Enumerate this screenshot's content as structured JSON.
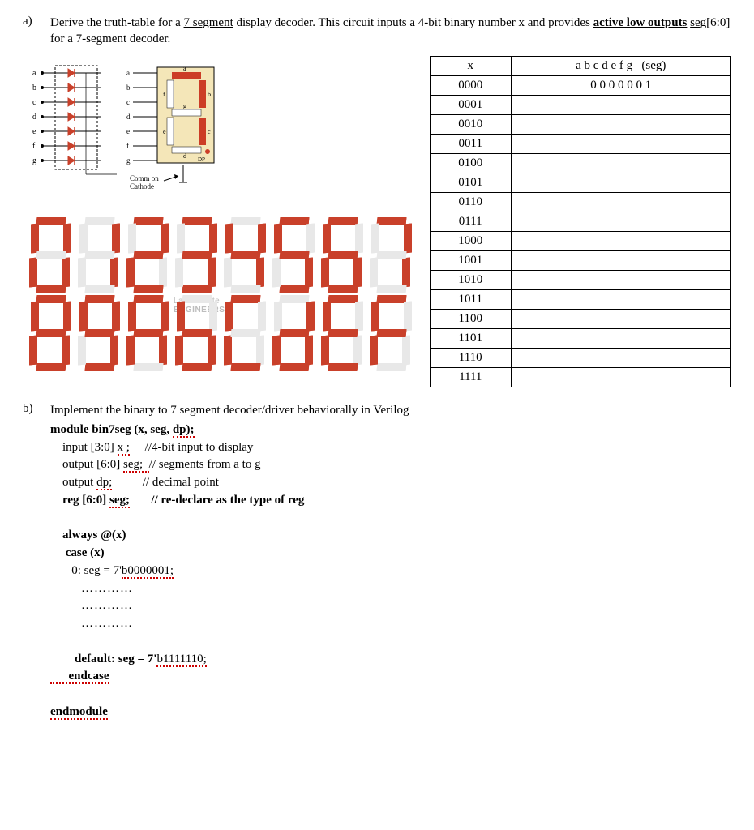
{
  "partA": {
    "label": "a)",
    "text_pre": "Derive the truth-table for a ",
    "underlined1": "7 segment",
    "text_mid": " display decoder. This circuit inputs a 4-bit binary number x and provides ",
    "bold_u": "active low outputs",
    "seg_u": "seg",
    "text_post": "[6:0] for a 7-segment decoder."
  },
  "schematic": {
    "pin_labels": [
      "a",
      "b",
      "c",
      "d",
      "e",
      "f",
      "g"
    ],
    "seg_labels": {
      "top": "a",
      "tr": "b",
      "br": "c",
      "bot": "d",
      "bl": "e",
      "tl": "f",
      "mid": "g",
      "dp": "DP"
    },
    "cathode_line1": "Comm on",
    "cathode_line2": "Cathode",
    "colors": {
      "ic_body": "#f4e6b8",
      "seg_on": "#cc3d26",
      "seg_off": "#fff",
      "pin_dot": "#000",
      "diode": "#c9402a",
      "wire": "#000"
    }
  },
  "hex_digits": {
    "rows": [
      [
        "0",
        "1",
        "2",
        "3",
        "4",
        "5",
        "6",
        "7"
      ],
      [
        "8",
        "9",
        "A",
        "b",
        "C",
        "d",
        "E",
        "F"
      ]
    ],
    "patterns": {
      "0": "1111110",
      "1": "0110000",
      "2": "1101101",
      "3": "1111001",
      "4": "0110011",
      "5": "1011011",
      "6": "1011111",
      "7": "1110000",
      "8": "1111111",
      "9": "1111011",
      "A": "1110111",
      "b": "0011111",
      "C": "1001110",
      "d": "0111101",
      "E": "1001111",
      "F": "1000111"
    },
    "seg_order": [
      "a",
      "b",
      "c",
      "d",
      "e",
      "f",
      "g"
    ],
    "on_color": "#c9402a",
    "off_color": "#e8e8e8",
    "watermark_line1": "Last Minute",
    "watermark_line2": "ENGINEERS"
  },
  "truth_table": {
    "headers": [
      "x",
      "a b c d e f g   (seg)"
    ],
    "rows": [
      {
        "x": "0000",
        "seg": "0 0 0 0 0 0 1"
      },
      {
        "x": "0001",
        "seg": ""
      },
      {
        "x": "0010",
        "seg": ""
      },
      {
        "x": "0011",
        "seg": ""
      },
      {
        "x": "0100",
        "seg": ""
      },
      {
        "x": "0101",
        "seg": ""
      },
      {
        "x": "0110",
        "seg": ""
      },
      {
        "x": "0111",
        "seg": ""
      },
      {
        "x": "1000",
        "seg": ""
      },
      {
        "x": "1001",
        "seg": ""
      },
      {
        "x": "1010",
        "seg": ""
      },
      {
        "x": "1011",
        "seg": ""
      },
      {
        "x": "1100",
        "seg": ""
      },
      {
        "x": "1101",
        "seg": ""
      },
      {
        "x": "1110",
        "seg": ""
      },
      {
        "x": "1111",
        "seg": ""
      }
    ]
  },
  "partB": {
    "label": "b)",
    "text": "Implement the binary to 7 segment decoder/driver behaviorally in Verilog"
  },
  "verilog": {
    "l1_pre": "module bin7seg (x, seg, ",
    "l1_dp": "dp);",
    "l2_pre": "    input [3:0] ",
    "l2_x": "x ;",
    "l2_cmt": "     //4-bit input to display",
    "l3_pre": "    output [6:0] ",
    "l3_seg": "seg;  ",
    "l3_cmt": "// segments from a to g",
    "l4_pre": "    output ",
    "l4_dp": "dp;",
    "l4_cmt": "          // decimal point",
    "l5_pre": "    reg [6:0] ",
    "l5_seg": "seg;",
    "l5_cmt": "       // re-declare as the type of reg",
    "l6": "    always @(x)",
    "l7": "     case (x)",
    "l8_pre": "       0: seg = 7'",
    "l8_val": "b0000001;",
    "dots": "        …………",
    "l_def_pre": "        default: seg = 7'",
    "l_def_val": "b1111110;",
    "l_endcase": "      endcase",
    "l_endmodule": "endmodule"
  }
}
